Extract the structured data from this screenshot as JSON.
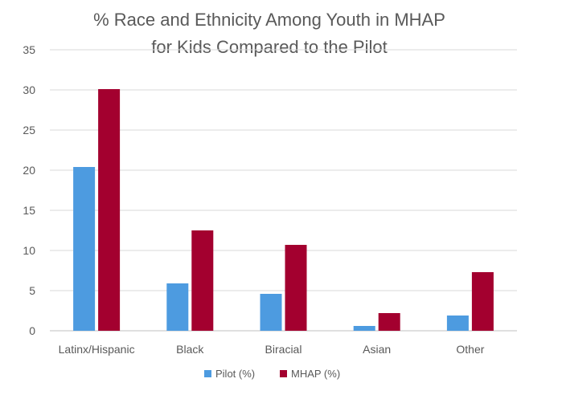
{
  "chart_data": {
    "type": "bar",
    "title_lines": [
      "% Race and Ethnicity Among Youth in MHAP",
      "for Kids Compared to the Pilot"
    ],
    "categories": [
      "Latinx/Hispanic",
      "Black",
      "Biracial",
      "Asian",
      "Other"
    ],
    "series": [
      {
        "name": "Pilot (%)",
        "color": "#4d9be0",
        "values": [
          20.4,
          5.9,
          4.6,
          0.6,
          1.9
        ]
      },
      {
        "name": "MHAP (%)",
        "color": "#a3002f",
        "values": [
          30.1,
          12.5,
          10.7,
          2.2,
          7.3
        ]
      }
    ],
    "ylim": [
      0,
      35
    ],
    "yticks": [
      0,
      5,
      10,
      15,
      20,
      25,
      30,
      35
    ],
    "grid": true,
    "legend_position": "bottom-center"
  }
}
